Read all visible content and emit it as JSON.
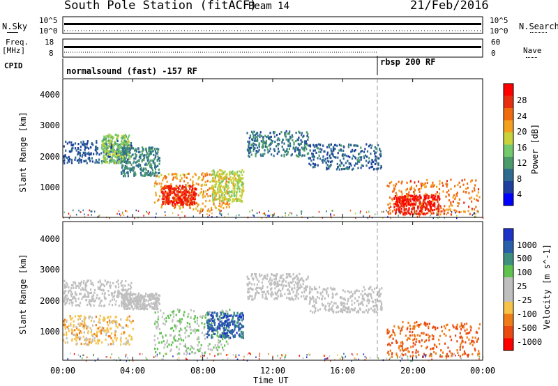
{
  "header": {
    "title": "South Pole Station (fitACF)",
    "beam": "Beam 14",
    "date": "21/Feb/2016"
  },
  "panels_top": {
    "nsky_label": "N.Sky",
    "nsearch_label": "N.Search",
    "freq_label": "Freq.",
    "freq_unit": "[MHz]",
    "nave_label": "Nave",
    "cpid_label": "CPID",
    "nsky_ticks_left": [
      "10^5",
      "10^0"
    ],
    "nsky_ticks_right": [
      "10^5",
      "10^0"
    ],
    "freq_ticks_left": [
      "18",
      "8"
    ],
    "freq_ticks_right": [
      "60",
      "0"
    ],
    "cpid_text_1": "normalsound (fast) -157 RF",
    "cpid_text_2": "rbsp 200 RF"
  },
  "colors": {
    "power_scale": [
      "#0000ff",
      "#1f3f9f",
      "#2e6b8f",
      "#4a9a6a",
      "#73c96b",
      "#c8d23a",
      "#f3a01f",
      "#f06a10",
      "#e82e10",
      "#ff0000"
    ],
    "velocity_scale": [
      "#1f32c8",
      "#2a5faa",
      "#3f8f7f",
      "#5fc24f",
      "#bfbfbf",
      "#bfbfbf",
      "#f6c24a",
      "#ee7c18",
      "#ea4a12",
      "#ff0000"
    ]
  },
  "chart_data": [
    {
      "type": "heatmap",
      "title": "Power",
      "ylabel": "Slant Range [km]",
      "xlabel": "",
      "x_ticks": [
        "00:00",
        "04:00",
        "08:00",
        "12:00",
        "16:00",
        "20:00",
        "00:00"
      ],
      "y_ticks": [
        "1000",
        "2000",
        "3000",
        "4000"
      ],
      "ylim": [
        180,
        4500
      ],
      "xlim_hours": [
        0,
        24
      ],
      "colorbar_label": "Power [dB]",
      "colorbar_ticks": [
        "28",
        "24",
        "20",
        "16",
        "12",
        "8",
        "4"
      ],
      "clim": [
        0,
        30
      ],
      "regions": [
        {
          "t": [
            0.0,
            3.9
          ],
          "r": [
            1900,
            2600
          ],
          "value": 6
        },
        {
          "t": [
            2.2,
            3.8
          ],
          "r": [
            1900,
            2800
          ],
          "value": 14
        },
        {
          "t": [
            3.3,
            5.5
          ],
          "r": [
            1500,
            2400
          ],
          "value": 9
        },
        {
          "t": [
            5.2,
            9.5
          ],
          "r": [
            400,
            1600
          ],
          "value": 20
        },
        {
          "t": [
            5.6,
            7.6
          ],
          "r": [
            600,
            1200
          ],
          "value": 26
        },
        {
          "t": [
            8.5,
            10.3
          ],
          "r": [
            700,
            1700
          ],
          "value": 16
        },
        {
          "t": [
            10.5,
            14.0
          ],
          "r": [
            2100,
            2900
          ],
          "value": 8
        },
        {
          "t": [
            14.0,
            18.2
          ],
          "r": [
            1700,
            2500
          ],
          "value": 7
        },
        {
          "t": [
            18.5,
            23.8
          ],
          "r": [
            300,
            1400
          ],
          "value": 22
        },
        {
          "t": [
            18.9,
            21.5
          ],
          "r": [
            300,
            900
          ],
          "value": 27
        }
      ]
    },
    {
      "type": "heatmap",
      "title": "Velocity",
      "ylabel": "Slant Range [km]",
      "xlabel": "Time UT",
      "x_ticks": [
        "00:00",
        "04:00",
        "08:00",
        "12:00",
        "16:00",
        "20:00",
        "00:00"
      ],
      "y_ticks": [
        "1000",
        "2000",
        "3000",
        "4000"
      ],
      "ylim": [
        180,
        4500
      ],
      "xlim_hours": [
        0,
        24
      ],
      "colorbar_label": "Velocity [m s^-1]",
      "colorbar_ticks": [
        "1000",
        "500",
        "100",
        "25",
        "-25",
        "-100",
        "-500",
        "-1000"
      ],
      "clim": [
        -1000,
        1000
      ],
      "regions": [
        {
          "t": [
            0.0,
            3.9
          ],
          "r": [
            1900,
            2700
          ],
          "value": 0
        },
        {
          "t": [
            3.3,
            5.5
          ],
          "r": [
            1800,
            2300
          ],
          "value": 0
        },
        {
          "t": [
            0.0,
            4.0
          ],
          "r": [
            700,
            1600
          ],
          "value": -300
        },
        {
          "t": [
            5.2,
            9.5
          ],
          "r": [
            400,
            1800
          ],
          "value": 200
        },
        {
          "t": [
            8.2,
            10.3
          ],
          "r": [
            900,
            1700
          ],
          "value": 700
        },
        {
          "t": [
            10.5,
            14.0
          ],
          "r": [
            2100,
            2900
          ],
          "value": 0
        },
        {
          "t": [
            14.0,
            18.2
          ],
          "r": [
            1700,
            2500
          ],
          "value": 0
        },
        {
          "t": [
            18.5,
            23.8
          ],
          "r": [
            300,
            1400
          ],
          "value": -600
        }
      ]
    }
  ]
}
